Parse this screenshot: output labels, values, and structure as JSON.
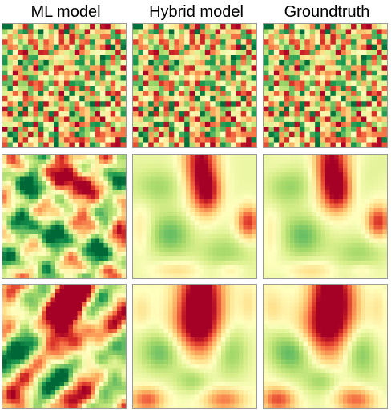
{
  "columns": [
    {
      "title": "ML model"
    },
    {
      "title": "Hybrid model"
    },
    {
      "title": "Groundtruth"
    }
  ],
  "colormap": {
    "name": "RdYlGn-like",
    "stops": [
      "#006837",
      "#1a9850",
      "#66bd63",
      "#a6d96a",
      "#d9ef8b",
      "#ffffbf",
      "#fee08b",
      "#fdae61",
      "#f46d43",
      "#d73027",
      "#a50026"
    ]
  },
  "rows": [
    {
      "name": "noise-row",
      "kind": "random-pixels"
    },
    {
      "name": "smooth-row-1",
      "kind": "smooth-field"
    },
    {
      "name": "smooth-row-2",
      "kind": "smooth-field"
    }
  ]
}
